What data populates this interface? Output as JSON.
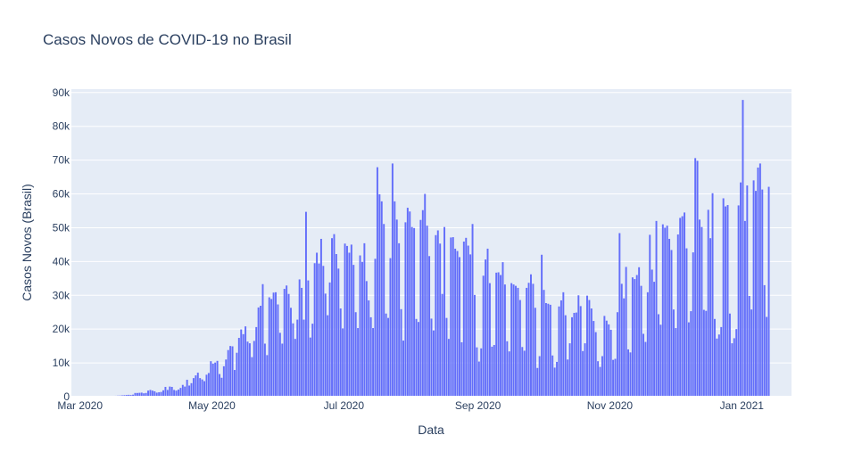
{
  "colors": {
    "bar_fill": "#636efa",
    "plot_bg": "#e5ecf6",
    "grid": "#ffffff",
    "text": "#2a3f5f"
  },
  "chart_data": {
    "type": "bar",
    "title": "Casos Novos de COVID-19 no Brasil",
    "xlabel": "Data",
    "ylabel": "Casos Novos (Brasil)",
    "grid": "horizontal",
    "legend": "none",
    "x_start": "2020-02-26",
    "x_end": "2021-01-24",
    "xlim": [
      "2020-02-26",
      "2021-01-24"
    ],
    "ylim": [
      0,
      91000
    ],
    "x_ticks": [
      {
        "date": "2020-03-01",
        "label": "Mar 2020"
      },
      {
        "date": "2020-05-01",
        "label": "May 2020"
      },
      {
        "date": "2020-07-01",
        "label": "Jul 2020"
      },
      {
        "date": "2020-09-01",
        "label": "Sep 2020"
      },
      {
        "date": "2020-11-01",
        "label": "Nov 2020"
      },
      {
        "date": "2021-01-01",
        "label": "Jan 2021"
      }
    ],
    "y_ticks": [
      {
        "value": 0,
        "label": "0"
      },
      {
        "value": 10000,
        "label": "10k"
      },
      {
        "value": 20000,
        "label": "20k"
      },
      {
        "value": 30000,
        "label": "30k"
      },
      {
        "value": 40000,
        "label": "40k"
      },
      {
        "value": 50000,
        "label": "50k"
      },
      {
        "value": 60000,
        "label": "60k"
      },
      {
        "value": 70000,
        "label": "70k"
      },
      {
        "value": 80000,
        "label": "80k"
      },
      {
        "value": 90000,
        "label": "90k"
      }
    ],
    "values": [
      1,
      0,
      0,
      1,
      0,
      1,
      2,
      5,
      4,
      5,
      10,
      12,
      26,
      50,
      70,
      100,
      130,
      170,
      210,
      240,
      280,
      320,
      350,
      400,
      450,
      500,
      550,
      500,
      600,
      1100,
      1100,
      1150,
      1200,
      1000,
      1100,
      1800,
      2000,
      1800,
      1600,
      1200,
      1300,
      1400,
      1900,
      2900,
      2000,
      3000,
      2900,
      2000,
      1800,
      2100,
      2600,
      3500,
      3000,
      5000,
      3300,
      4000,
      5500,
      6300,
      7100,
      5500,
      5100,
      4600,
      6500,
      7000,
      10500,
      9800,
      10100,
      10600,
      6700,
      5600,
      9000,
      11000,
      13800,
      15000,
      14900,
      7900,
      13000,
      17400,
      19900,
      18500,
      20800,
      16300,
      15800,
      11700,
      16500,
      20600,
      26400,
      26900,
      33300,
      15700,
      12300,
      29400,
      28900,
      30800,
      30900,
      27300,
      18900,
      15700,
      31900,
      32900,
      30400,
      26300,
      21700,
      17100,
      22800,
      34700,
      32200,
      22800,
      54700,
      34400,
      17500,
      21600,
      39500,
      42600,
      39400,
      46700,
      38700,
      30500,
      24100,
      33800,
      46900,
      48100,
      42200,
      37900,
      26100,
      20200,
      45300,
      44600,
      42600,
      45000,
      39000,
      25000,
      20300,
      41800,
      39900,
      45400,
      34200,
      28500,
      23500,
      20300,
      40800,
      67900,
      59900,
      57800,
      51100,
      24600,
      23300,
      41000,
      69000,
      57800,
      52400,
      45400,
      25900,
      16600,
      51600,
      55900,
      54800,
      50200,
      49900,
      23000,
      22100,
      52300,
      55200,
      60000,
      50600,
      41600,
      23100,
      19600,
      47800,
      49200,
      45300,
      30400,
      50200,
      23300,
      17100,
      47100,
      47200,
      43800,
      43100,
      41300,
      16100,
      45900,
      47000,
      44700,
      42100,
      51100,
      30100,
      14600,
      10400,
      14300,
      35800,
      40600,
      43800,
      33600,
      14800,
      15300,
      36700,
      36800,
      36000,
      39800,
      33200,
      16400,
      13400,
      33600,
      33200,
      32800,
      32200,
      28600,
      14700,
      13600,
      32200,
      33700,
      36200,
      33400,
      26300,
      8500,
      12000,
      42000,
      31600,
      27700,
      27500,
      27200,
      12200,
      8600,
      10300,
      26700,
      28500,
      30900,
      24100,
      11000,
      15800,
      23500,
      24800,
      24900,
      30000,
      26800,
      13500,
      15800,
      29900,
      28600,
      26100,
      22400,
      19100,
      10500,
      8800,
      12000,
      23900,
      22500,
      21400,
      19800,
      10900,
      11200,
      25000,
      48400,
      33400,
      29100,
      38400,
      14000,
      13100,
      35300,
      34800,
      36000,
      38300,
      32800,
      18600,
      16200,
      30900,
      47900,
      37600,
      34000,
      52000,
      24400,
      21300,
      51000,
      50000,
      50600,
      46700,
      43400,
      25800,
      20300,
      48000,
      52900,
      53400,
      54500,
      43900,
      22000,
      25300,
      42700,
      70600,
      69800,
      52400,
      50200,
      25700,
      25400,
      55300,
      46900,
      60200,
      23000,
      17200,
      18400,
      20600,
      58700,
      56300,
      56700,
      24600,
      15800,
      17300,
      20000,
      56600,
      63400,
      87800,
      52000,
      62500,
      29800,
      25800,
      64000,
      60900,
      67800,
      69000,
      61300,
      33000,
      23600,
      62100
    ]
  }
}
